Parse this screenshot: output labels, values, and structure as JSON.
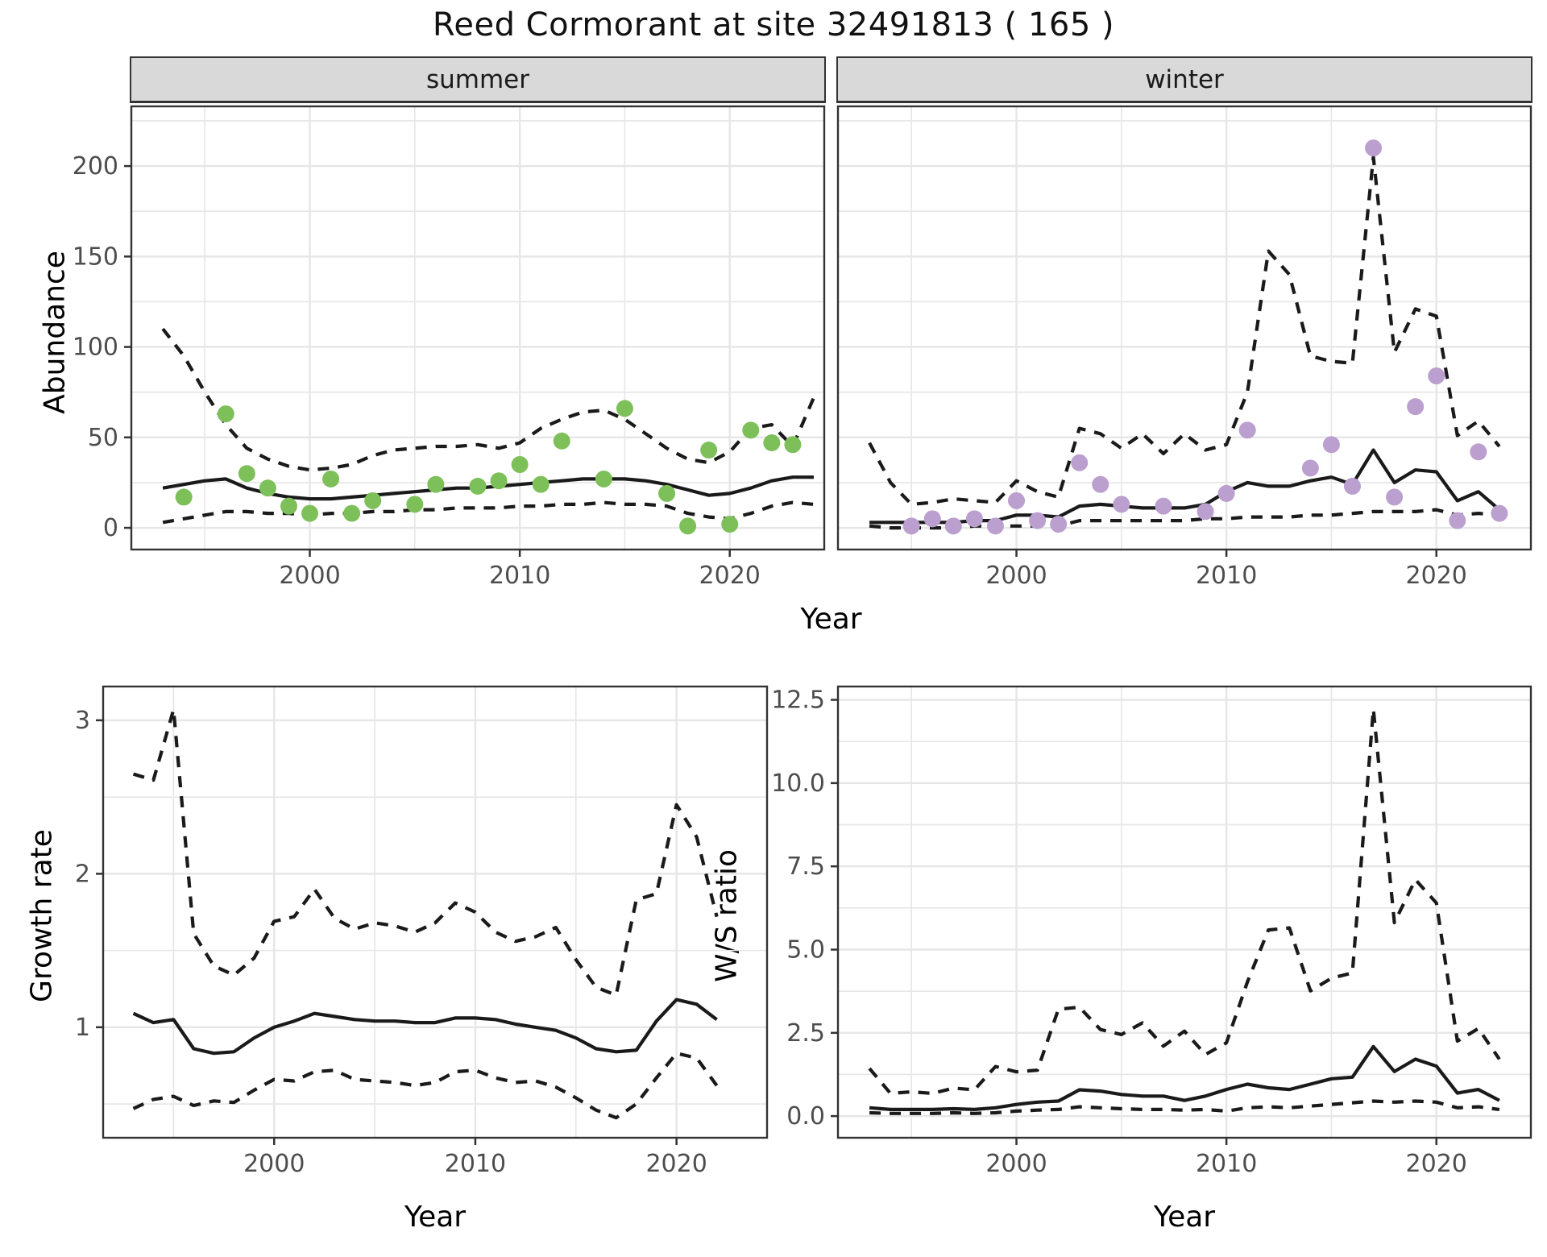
{
  "title": "Reed Cormorant at site 32491813 ( 165 )",
  "colors": {
    "summer_point": "#7dc05a",
    "winter_point": "#bb9fce",
    "line": "#1a1a1a",
    "grid": "#e6e6e6",
    "panel_border": "#333333",
    "strip_bg": "#d9d9d9",
    "tick_label": "#4d4d4d"
  },
  "top_axis": {
    "y_label": "Abundance",
    "x_label": "Year"
  },
  "bottom_left_axis": {
    "y_label": "Growth rate",
    "x_label": "Year"
  },
  "bottom_right_axis": {
    "y_label": "W/S ratio",
    "x_label": "Year"
  },
  "chart_data": [
    {
      "id": "summer",
      "type": "line+scatter",
      "facet_label": "summer",
      "xlim": [
        1991.5,
        2024.5
      ],
      "xticks": [
        2000,
        2010,
        2020
      ],
      "xtick_labels": [
        "2000",
        "2010",
        "2020"
      ],
      "xminor": [
        1995,
        2005,
        2015
      ],
      "ylim": [
        -12,
        233
      ],
      "yticks": [
        0,
        50,
        100,
        150,
        200
      ],
      "ytick_labels": [
        "0",
        "50",
        "100",
        "150",
        "200"
      ],
      "yminor": [
        25,
        75,
        125,
        175,
        225
      ],
      "show_y_labels": true,
      "years_start": 1993,
      "series": {
        "fit": [
          22,
          24,
          26,
          27,
          22,
          19,
          17,
          16,
          16,
          17,
          18,
          19,
          20,
          21,
          22,
          22,
          23,
          24,
          25,
          26,
          27,
          27,
          27,
          26,
          24,
          21,
          18,
          19,
          22,
          26,
          28,
          28
        ],
        "upper": [
          110,
          95,
          75,
          57,
          44,
          38,
          34,
          32,
          33,
          35,
          40,
          43,
          44,
          45,
          45,
          46,
          44,
          47,
          55,
          60,
          64,
          65,
          60,
          52,
          44,
          38,
          36,
          42,
          55,
          57,
          45,
          72
        ],
        "lower": [
          3,
          5,
          7,
          9,
          9,
          8,
          8,
          7,
          8,
          8,
          9,
          9,
          10,
          10,
          11,
          11,
          11,
          12,
          12,
          13,
          13,
          14,
          13,
          13,
          12,
          8,
          6,
          5,
          8,
          12,
          14,
          13
        ]
      },
      "points": [
        [
          1994,
          17
        ],
        [
          1996,
          63
        ],
        [
          1997,
          30
        ],
        [
          1998,
          22
        ],
        [
          1999,
          12
        ],
        [
          2000,
          8
        ],
        [
          2001,
          27
        ],
        [
          2002,
          8
        ],
        [
          2003,
          15
        ],
        [
          2005,
          13
        ],
        [
          2006,
          24
        ],
        [
          2008,
          23
        ],
        [
          2009,
          26
        ],
        [
          2010,
          35
        ],
        [
          2011,
          24
        ],
        [
          2012,
          48
        ],
        [
          2014,
          27
        ],
        [
          2015,
          66
        ],
        [
          2017,
          19
        ],
        [
          2018,
          1
        ],
        [
          2019,
          43
        ],
        [
          2020,
          2
        ],
        [
          2021,
          54
        ],
        [
          2022,
          47
        ],
        [
          2023,
          46
        ]
      ],
      "point_color": "#7dc05a"
    },
    {
      "id": "winter",
      "type": "line+scatter",
      "facet_label": "winter",
      "xlim": [
        1991.5,
        2024.5
      ],
      "xticks": [
        2000,
        2010,
        2020
      ],
      "xtick_labels": [
        "2000",
        "2010",
        "2020"
      ],
      "xminor": [
        1995,
        2005,
        2015
      ],
      "ylim": [
        -12,
        233
      ],
      "yticks": [
        0,
        50,
        100,
        150,
        200
      ],
      "ytick_labels": [
        "0",
        "50",
        "100",
        "150",
        "200"
      ],
      "yminor": [
        25,
        75,
        125,
        175,
        225
      ],
      "show_y_labels": false,
      "years_start": 1993,
      "series": {
        "fit": [
          3,
          3,
          3,
          3,
          3,
          4,
          4,
          7,
          7,
          6,
          12,
          13,
          12,
          11,
          11,
          11,
          13,
          20,
          25,
          23,
          23,
          26,
          28,
          24,
          43,
          25,
          32,
          31,
          15,
          20,
          10
        ],
        "upper": [
          47,
          25,
          13,
          14,
          16,
          15,
          14,
          26,
          20,
          17,
          55,
          52,
          44,
          52,
          41,
          52,
          43,
          46,
          75,
          153,
          140,
          95,
          92,
          91,
          205,
          97,
          121,
          117,
          51,
          59,
          45
        ],
        "lower": [
          1,
          0,
          0,
          0,
          0,
          1,
          1,
          1,
          1,
          1,
          4,
          4,
          4,
          4,
          4,
          4,
          5,
          5,
          6,
          6,
          6,
          7,
          7,
          8,
          9,
          9,
          9,
          10,
          7,
          8,
          7
        ]
      },
      "points": [
        [
          1995,
          1
        ],
        [
          1996,
          5
        ],
        [
          1997,
          1
        ],
        [
          1998,
          5
        ],
        [
          1999,
          1
        ],
        [
          2000,
          15
        ],
        [
          2001,
          4
        ],
        [
          2002,
          2
        ],
        [
          2003,
          36
        ],
        [
          2004,
          24
        ],
        [
          2005,
          13
        ],
        [
          2007,
          12
        ],
        [
          2009,
          9
        ],
        [
          2010,
          19
        ],
        [
          2011,
          54
        ],
        [
          2014,
          33
        ],
        [
          2015,
          46
        ],
        [
          2016,
          23
        ],
        [
          2017,
          210
        ],
        [
          2018,
          17
        ],
        [
          2019,
          67
        ],
        [
          2020,
          84
        ],
        [
          2021,
          4
        ],
        [
          2022,
          42
        ],
        [
          2023,
          8
        ]
      ],
      "point_color": "#bb9fce"
    },
    {
      "id": "growth",
      "type": "line",
      "facet_label": "",
      "xlim": [
        1991.5,
        2024.5
      ],
      "xticks": [
        2000,
        2010,
        2020
      ],
      "xtick_labels": [
        "2000",
        "2010",
        "2020"
      ],
      "xminor": [
        1995,
        2005,
        2015
      ],
      "ylim": [
        0.28,
        3.22
      ],
      "yticks": [
        1,
        2,
        3
      ],
      "ytick_labels": [
        "1",
        "2",
        "3"
      ],
      "yminor": [
        0.5,
        1.5,
        2.5
      ],
      "show_y_labels": true,
      "years_start": 1993,
      "series": {
        "fit": [
          1.09,
          1.03,
          1.05,
          0.86,
          0.83,
          0.84,
          0.93,
          1.0,
          1.04,
          1.09,
          1.07,
          1.05,
          1.04,
          1.04,
          1.03,
          1.03,
          1.06,
          1.06,
          1.05,
          1.02,
          1.0,
          0.98,
          0.93,
          0.86,
          0.84,
          0.85,
          1.04,
          1.18,
          1.15,
          1.05
        ],
        "upper": [
          2.65,
          2.61,
          3.07,
          1.61,
          1.4,
          1.34,
          1.45,
          1.69,
          1.72,
          1.9,
          1.71,
          1.64,
          1.68,
          1.66,
          1.62,
          1.68,
          1.81,
          1.75,
          1.62,
          1.56,
          1.59,
          1.65,
          1.44,
          1.26,
          1.21,
          1.83,
          1.87,
          2.45,
          2.24,
          1.72
        ],
        "lower": [
          0.47,
          0.53,
          0.55,
          0.49,
          0.52,
          0.51,
          0.59,
          0.66,
          0.65,
          0.71,
          0.72,
          0.66,
          0.65,
          0.64,
          0.62,
          0.64,
          0.71,
          0.72,
          0.67,
          0.64,
          0.65,
          0.61,
          0.54,
          0.46,
          0.41,
          0.5,
          0.67,
          0.83,
          0.8,
          0.62
        ]
      },
      "points": [],
      "point_color": "#1a1a1a"
    },
    {
      "id": "ws",
      "type": "line",
      "facet_label": "",
      "xlim": [
        1991.5,
        2024.5
      ],
      "xticks": [
        2000,
        2010,
        2020
      ],
      "xtick_labels": [
        "2000",
        "2010",
        "2020"
      ],
      "xminor": [
        1995,
        2005,
        2015
      ],
      "ylim": [
        -0.65,
        12.9
      ],
      "yticks": [
        0,
        2.5,
        5,
        7.5,
        10,
        12.5
      ],
      "ytick_labels": [
        "0.0",
        "2.5",
        "5.0",
        "7.5",
        "10.0",
        "12.5"
      ],
      "yminor": [
        1.25,
        3.75,
        6.25,
        8.75,
        11.25
      ],
      "show_y_labels": true,
      "years_start": 1993,
      "series": {
        "fit": [
          0.25,
          0.2,
          0.2,
          0.2,
          0.22,
          0.2,
          0.25,
          0.35,
          0.42,
          0.45,
          0.79,
          0.75,
          0.65,
          0.6,
          0.6,
          0.47,
          0.6,
          0.8,
          0.96,
          0.85,
          0.8,
          0.96,
          1.12,
          1.17,
          2.09,
          1.34,
          1.71,
          1.5,
          0.69,
          0.8,
          0.47
        ],
        "upper": [
          1.43,
          0.68,
          0.73,
          0.68,
          0.84,
          0.79,
          1.49,
          1.33,
          1.38,
          3.21,
          3.27,
          2.6,
          2.45,
          2.8,
          2.1,
          2.55,
          1.85,
          2.2,
          4.03,
          5.59,
          5.65,
          3.76,
          4.14,
          4.3,
          12.22,
          5.81,
          7.1,
          6.4,
          2.25,
          2.63,
          1.71
        ],
        "lower": [
          0.1,
          0.08,
          0.08,
          0.08,
          0.1,
          0.08,
          0.1,
          0.15,
          0.18,
          0.2,
          0.28,
          0.25,
          0.22,
          0.2,
          0.2,
          0.18,
          0.2,
          0.15,
          0.25,
          0.28,
          0.25,
          0.3,
          0.35,
          0.4,
          0.45,
          0.42,
          0.45,
          0.42,
          0.25,
          0.28,
          0.2
        ]
      },
      "points": [],
      "point_color": "#1a1a1a"
    }
  ]
}
